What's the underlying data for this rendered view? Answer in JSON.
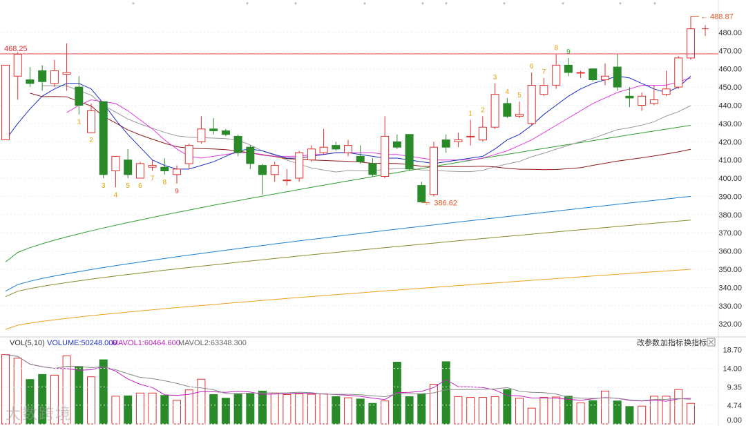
{
  "chart_data": {
    "type": "candlestick",
    "price_axis": {
      "ticks": [
        "480.00",
        "470.00",
        "460.00",
        "450.00",
        "440.00",
        "430.00",
        "420.00",
        "410.00",
        "400.00",
        "390.00",
        "380.00",
        "370.00",
        "360.00",
        "350.00",
        "340.00",
        "330.00",
        "320.00"
      ],
      "range": [
        314,
        494
      ]
    },
    "reference_line": {
      "value": 468.25,
      "label": "468.25"
    },
    "high_annotation": {
      "label": "488.87",
      "value": 488.87
    },
    "low_annotation": {
      "label": "386.62",
      "value": 386.62
    },
    "candles": [
      {
        "o": 421,
        "c": 462,
        "h": 462,
        "l": 421
      },
      {
        "o": 456,
        "c": 468,
        "h": 469,
        "l": 443
      },
      {
        "o": 454,
        "c": 452,
        "h": 461,
        "l": 450
      },
      {
        "o": 459,
        "c": 453,
        "h": 462,
        "l": 448
      },
      {
        "o": 452,
        "c": 459,
        "h": 465,
        "l": 450
      },
      {
        "o": 457,
        "c": 458,
        "h": 474,
        "l": 448
      },
      {
        "o": 450,
        "c": 440,
        "h": 456,
        "l": 435
      },
      {
        "o": 425,
        "c": 437,
        "h": 441,
        "l": 425
      },
      {
        "o": 442,
        "c": 402,
        "h": 442,
        "l": 400
      },
      {
        "o": 404,
        "c": 412,
        "h": 412,
        "l": 395
      },
      {
        "o": 410,
        "c": 402,
        "h": 416,
        "l": 400
      },
      {
        "o": 400,
        "c": 408,
        "h": 409,
        "l": 400
      },
      {
        "o": 406,
        "c": 407,
        "h": 410,
        "l": 404
      },
      {
        "o": 406,
        "c": 404,
        "h": 411,
        "l": 402
      },
      {
        "o": 402,
        "c": 405,
        "h": 407,
        "l": 397
      },
      {
        "o": 408,
        "c": 418,
        "h": 419,
        "l": 405
      },
      {
        "o": 420,
        "c": 427,
        "h": 434,
        "l": 419
      },
      {
        "o": 427,
        "c": 426,
        "h": 433,
        "l": 424
      },
      {
        "o": 426,
        "c": 424,
        "h": 427,
        "l": 423
      },
      {
        "o": 423,
        "c": 414,
        "h": 424,
        "l": 412
      },
      {
        "o": 417,
        "c": 408,
        "h": 418,
        "l": 405
      },
      {
        "o": 407,
        "c": 402,
        "h": 408,
        "l": 391
      },
      {
        "o": 402,
        "c": 407,
        "h": 409,
        "l": 398
      },
      {
        "o": 399,
        "c": 399,
        "h": 405,
        "l": 396
      },
      {
        "o": 400,
        "c": 414,
        "h": 415,
        "l": 398
      },
      {
        "o": 410,
        "c": 416,
        "h": 418,
        "l": 409
      },
      {
        "o": 414,
        "c": 417,
        "h": 427,
        "l": 413
      },
      {
        "o": 418,
        "c": 416,
        "h": 420,
        "l": 415
      },
      {
        "o": 414,
        "c": 418,
        "h": 421,
        "l": 412
      },
      {
        "o": 412,
        "c": 409,
        "h": 418,
        "l": 408
      },
      {
        "o": 408,
        "c": 402,
        "h": 411,
        "l": 401
      },
      {
        "o": 401,
        "c": 423,
        "h": 434,
        "l": 400
      },
      {
        "o": 420,
        "c": 417,
        "h": 424,
        "l": 416
      },
      {
        "o": 424,
        "c": 405,
        "h": 424,
        "l": 404
      },
      {
        "o": 396,
        "c": 387,
        "h": 398,
        "l": 386.62
      },
      {
        "o": 391,
        "c": 417,
        "h": 420,
        "l": 390
      },
      {
        "o": 421,
        "c": 417,
        "h": 424,
        "l": 414
      },
      {
        "o": 420,
        "c": 421,
        "h": 425,
        "l": 417
      },
      {
        "o": 423,
        "c": 423,
        "h": 432,
        "l": 418
      },
      {
        "o": 421,
        "c": 428,
        "h": 434,
        "l": 420
      },
      {
        "o": 428,
        "c": 446,
        "h": 452,
        "l": 427
      },
      {
        "o": 441,
        "c": 434,
        "h": 444,
        "l": 433
      },
      {
        "o": 434,
        "c": 435,
        "h": 442,
        "l": 433
      },
      {
        "o": 430,
        "c": 451,
        "h": 458,
        "l": 429
      },
      {
        "o": 446,
        "c": 451,
        "h": 455,
        "l": 445
      },
      {
        "o": 451,
        "c": 462,
        "h": 468,
        "l": 449
      },
      {
        "o": 462,
        "c": 458,
        "h": 466,
        "l": 456
      },
      {
        "o": 458,
        "c": 458,
        "h": 459,
        "l": 455
      },
      {
        "o": 460,
        "c": 454,
        "h": 460,
        "l": 453
      },
      {
        "o": 454,
        "c": 456,
        "h": 463,
        "l": 451
      },
      {
        "o": 461,
        "c": 450,
        "h": 468,
        "l": 448
      },
      {
        "o": 445,
        "c": 444,
        "h": 450,
        "l": 439
      },
      {
        "o": 440,
        "c": 445,
        "h": 447,
        "l": 437
      },
      {
        "o": 441,
        "c": 443,
        "h": 451,
        "l": 440
      },
      {
        "o": 446,
        "c": 449,
        "h": 459,
        "l": 445
      },
      {
        "o": 450,
        "c": 466,
        "h": 467,
        "l": 449
      },
      {
        "o": 466,
        "c": 482,
        "h": 488.87,
        "l": 465
      }
    ],
    "moving_averages": [
      {
        "color": "#1a2fc0",
        "values": [
          421,
          430,
          438,
          445,
          449,
          452,
          452,
          449,
          441,
          432,
          424,
          417,
          410,
          407,
          405,
          405,
          407,
          409,
          412,
          415,
          416,
          415,
          413,
          411,
          411,
          412,
          413,
          414,
          414,
          413,
          412,
          411,
          411,
          410,
          409,
          408,
          409,
          410,
          411,
          412,
          416,
          421,
          424,
          429,
          435,
          440,
          445,
          449,
          452,
          454,
          456,
          455,
          452,
          449,
          447,
          450,
          456
        ]
      },
      {
        "color": "#e23be0",
        "values": [
          null,
          null,
          null,
          null,
          null,
          436,
          440,
          443,
          442,
          441,
          437,
          432,
          427,
          421,
          416,
          412,
          411,
          412,
          413,
          414,
          414,
          413,
          412,
          412,
          412,
          413,
          413,
          414,
          414,
          414,
          414,
          413,
          413,
          412,
          411,
          410,
          410,
          410,
          410,
          411,
          413,
          415,
          418,
          421,
          425,
          429,
          433,
          437,
          441,
          444,
          447,
          449,
          451,
          451,
          451,
          453,
          455
        ]
      },
      {
        "color": "#999999",
        "values": [
          null,
          null,
          null,
          null,
          null,
          null,
          null,
          null,
          null,
          null,
          null,
          null,
          null,
          null,
          null,
          null,
          null,
          null,
          null,
          null,
          null,
          null,
          null,
          null,
          null,
          null,
          null,
          null,
          null,
          null,
          null,
          null,
          null,
          null,
          null,
          null,
          null,
          null,
          null,
          null,
          null,
          null,
          null,
          null,
          null,
          null,
          null,
          null,
          null,
          null,
          null,
          null,
          null,
          null,
          null,
          null,
          null
        ]
      },
      {
        "color": "#8b1a1a",
        "values": [
          null,
          null,
          null,
          null,
          null,
          null,
          null,
          null,
          null,
          null,
          null,
          null,
          null,
          null,
          null,
          null,
          null,
          null,
          null,
          null,
          null,
          null,
          null,
          null,
          null,
          null,
          null,
          null,
          null,
          null,
          null,
          null,
          null,
          null,
          null,
          null,
          null,
          null,
          null,
          null,
          null,
          null,
          null,
          null,
          null,
          null,
          null,
          null,
          null,
          null,
          null,
          null,
          null,
          null,
          null,
          null,
          null
        ]
      }
    ],
    "long_ma": [
      {
        "color": "#2e9e2e",
        "start": 354,
        "end": 429
      },
      {
        "color": "#1a7fd0",
        "start": 338,
        "end": 390
      },
      {
        "color": "#8a8a2a",
        "start": 335,
        "end": 377
      },
      {
        "color": "#f0a020",
        "start": 317,
        "end": 350
      }
    ],
    "sequence_marks": [
      {
        "i": 6,
        "label": "1",
        "color": "#e0a000",
        "pos": "below"
      },
      {
        "i": 7,
        "label": "2",
        "color": "#e0a000",
        "pos": "below"
      },
      {
        "i": 8,
        "label": "3",
        "color": "#e0a000",
        "pos": "below"
      },
      {
        "i": 9,
        "label": "4",
        "color": "#e0a000",
        "pos": "below"
      },
      {
        "i": 10,
        "label": "5",
        "color": "#e0a000",
        "pos": "below"
      },
      {
        "i": 11,
        "label": "6",
        "color": "#e0a000",
        "pos": "below"
      },
      {
        "i": 12,
        "label": "7",
        "color": "#e0a000",
        "pos": "below"
      },
      {
        "i": 13,
        "label": "8",
        "color": "#e0a000",
        "pos": "below"
      },
      {
        "i": 14,
        "label": "9",
        "color": "#e03030",
        "pos": "below"
      },
      {
        "i": 38,
        "label": "1",
        "color": "#e0a000",
        "pos": "above"
      },
      {
        "i": 39,
        "label": "2",
        "color": "#e0a000",
        "pos": "above"
      },
      {
        "i": 40,
        "label": "3",
        "color": "#e0a000",
        "pos": "above"
      },
      {
        "i": 41,
        "label": "4",
        "color": "#e0a000",
        "pos": "above"
      },
      {
        "i": 42,
        "label": "5",
        "color": "#e0a000",
        "pos": "above"
      },
      {
        "i": 43,
        "label": "6",
        "color": "#e0a000",
        "pos": "above"
      },
      {
        "i": 44,
        "label": "7",
        "color": "#e0a000",
        "pos": "above"
      },
      {
        "i": 45,
        "label": "8",
        "color": "#e0a000",
        "pos": "above"
      },
      {
        "i": 46,
        "label": "9",
        "color": "#20b020",
        "pos": "above"
      }
    ],
    "volume_panel": {
      "indicator": "VOL(5,10)",
      "volume_label": "VOLUME:50248.000",
      "mavol1_label": "MAVOL1:60464.600",
      "mavol2_label": "MAVOL2:63348.300",
      "ticks": [
        "18.70",
        "14.00",
        "9.35",
        "4.74",
        "0.00"
      ],
      "range": [
        0,
        19
      ],
      "values": [
        17.5,
        16.6,
        11.2,
        12.5,
        12.3,
        17.2,
        14.5,
        11.9,
        16.2,
        7.0,
        7.1,
        7.8,
        7.8,
        7.2,
        6.0,
        8.6,
        11.3,
        7.4,
        6.5,
        7.5,
        7.6,
        8.3,
        7.8,
        7.4,
        7.6,
        7.5,
        7.6,
        6.9,
        6.6,
        6.3,
        5.2,
        5.8,
        15.6,
        6.9,
        7.6,
        10.0,
        15.7,
        6.9,
        6.7,
        6.7,
        6.9,
        8.7,
        6.5,
        4.0,
        6.7,
        6.8,
        7.0,
        5.3,
        5.9,
        8.3,
        5.8,
        4.4,
        4.5,
        7.0,
        7.0,
        8.7,
        5.2
      ]
    }
  },
  "toolbar": {
    "change_params": "改参数",
    "add_indicator": "加指标",
    "swap_indicator": "换指标"
  },
  "watermark": "大数跨境"
}
